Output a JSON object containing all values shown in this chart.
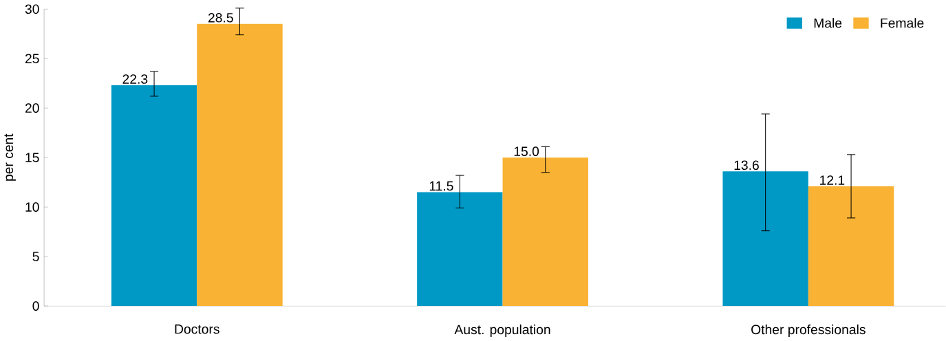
{
  "chart_data": {
    "type": "bar",
    "ylabel": "per cent",
    "categories": [
      "Doctors",
      "Aust. population",
      "Other professionals"
    ],
    "series": [
      {
        "name": "Male",
        "color": "#0099c6",
        "values": [
          22.3,
          11.5,
          13.6
        ],
        "value_labels": [
          "22.3",
          "11.5",
          "13.6"
        ],
        "errors": [
          [
            21.2,
            23.7
          ],
          [
            9.9,
            13.2
          ],
          [
            7.6,
            19.4
          ]
        ]
      },
      {
        "name": "Female",
        "color": "#f9b233",
        "values": [
          28.5,
          15.0,
          12.1
        ],
        "value_labels": [
          "28.5",
          "15.0",
          "12.1"
        ],
        "errors": [
          [
            27.4,
            30.1
          ],
          [
            13.5,
            16.1
          ],
          [
            8.9,
            15.3
          ]
        ]
      }
    ],
    "ylim": [
      0,
      30
    ],
    "yticks": [
      0,
      5,
      10,
      15,
      20,
      25,
      30
    ],
    "grid": false,
    "legend": "top right"
  }
}
